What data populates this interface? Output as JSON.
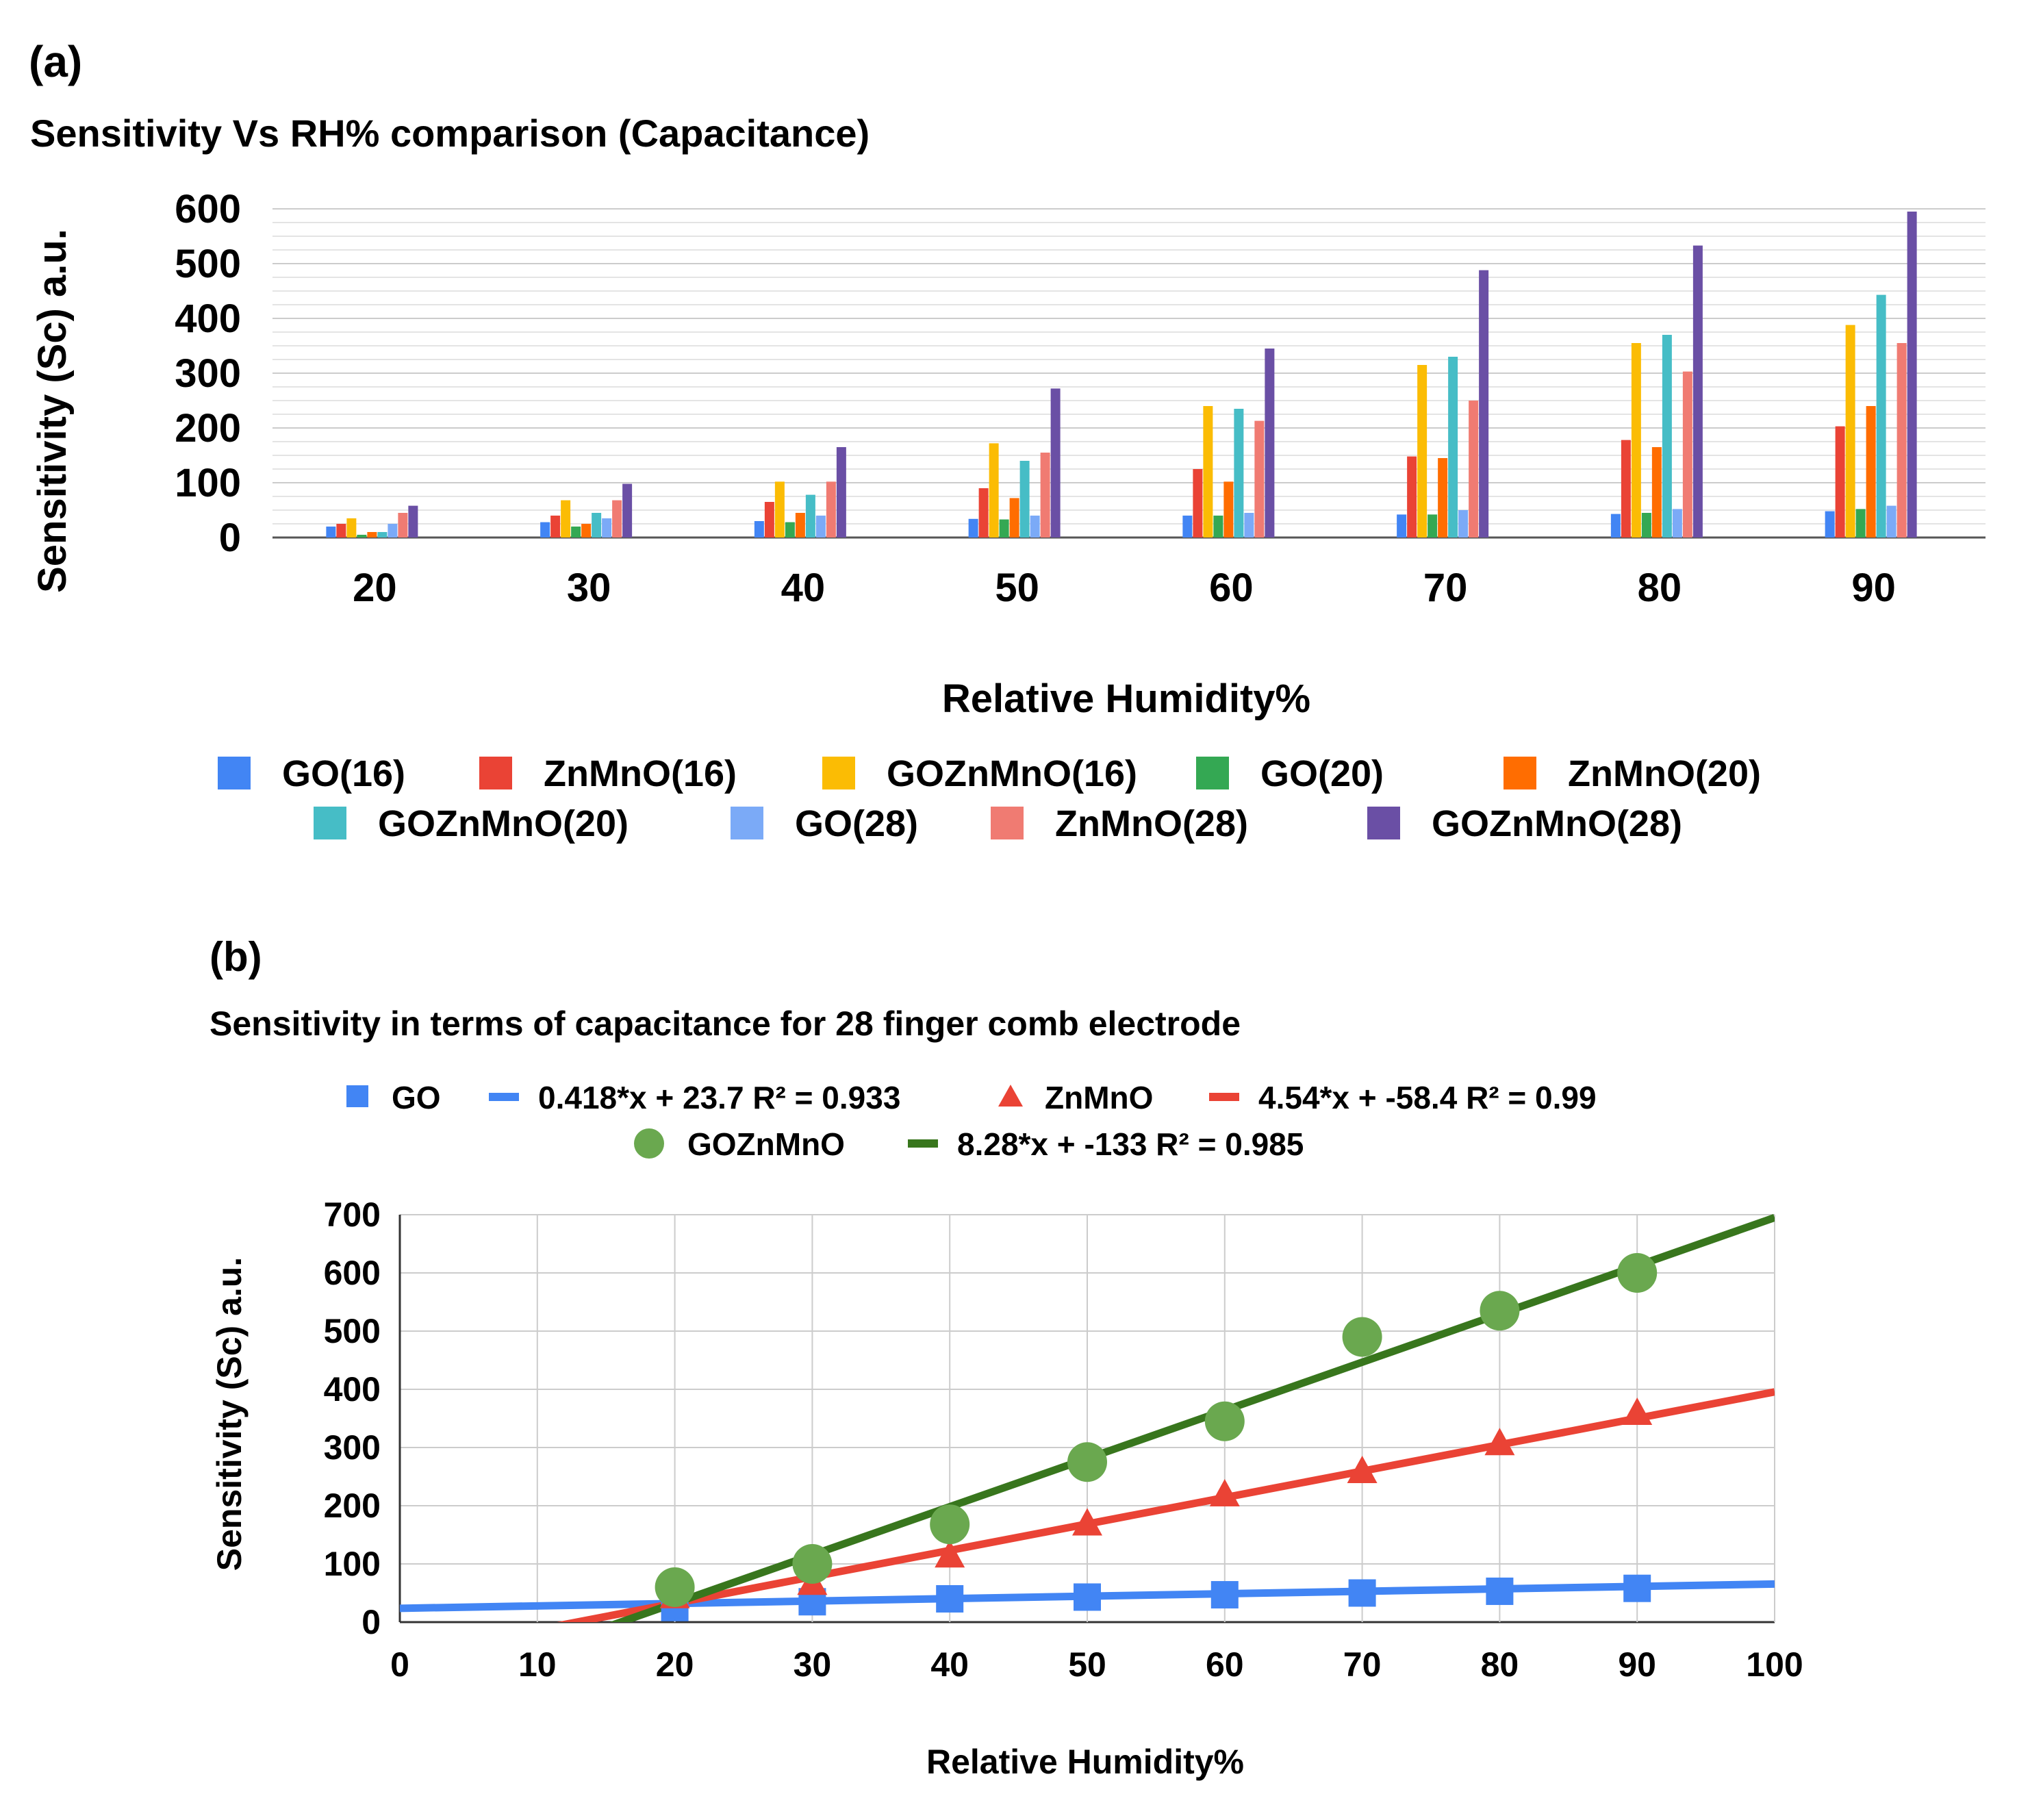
{
  "chart_data": [
    {
      "panel": "(a)",
      "type": "bar",
      "title": "Sensitivity Vs RH% comparison (Capacitance)",
      "xlabel": "Relative Humidity%",
      "ylabel": "Sensitivity (Sc) a.u.",
      "ylim": [
        0,
        600
      ],
      "yticks": [
        "0",
        "100",
        "200",
        "300",
        "400",
        "500",
        "600"
      ],
      "categories": [
        "20",
        "30",
        "40",
        "50",
        "60",
        "70",
        "80",
        "90"
      ],
      "legend_position": "bottom",
      "series": [
        {
          "name": "GO(16)",
          "color": "#4285f4",
          "values": [
            20,
            28,
            30,
            34,
            40,
            42,
            43,
            48
          ]
        },
        {
          "name": "ZnMnO(16)",
          "color": "#ea4335",
          "values": [
            25,
            40,
            65,
            90,
            125,
            148,
            178,
            203
          ]
        },
        {
          "name": "GOZnMnO(16)",
          "color": "#fbbc04",
          "values": [
            35,
            68,
            102,
            172,
            240,
            315,
            355,
            388
          ]
        },
        {
          "name": "GO(20)",
          "color": "#34a853",
          "values": [
            5,
            20,
            28,
            33,
            40,
            42,
            45,
            52
          ]
        },
        {
          "name": "ZnMnO(20)",
          "color": "#ff6d01",
          "values": [
            10,
            25,
            45,
            72,
            102,
            145,
            165,
            240
          ]
        },
        {
          "name": "GOZnMnO(20)",
          "color": "#46bdc6",
          "values": [
            10,
            45,
            78,
            140,
            235,
            330,
            370,
            443
          ]
        },
        {
          "name": "GO(28)",
          "color": "#7baaf7",
          "values": [
            25,
            35,
            40,
            40,
            45,
            50,
            52,
            58
          ]
        },
        {
          "name": "ZnMnO(28)",
          "color": "#f07b72",
          "values": [
            45,
            68,
            102,
            155,
            213,
            250,
            303,
            355
          ]
        },
        {
          "name": "GOZnMnO(28)",
          "color": "#6a4fa5",
          "values": [
            58,
            98,
            165,
            272,
            345,
            488,
            533,
            595
          ]
        }
      ]
    },
    {
      "panel": "(b)",
      "type": "scatter",
      "title": "Sensitivity in terms of capacitance for 28 finger comb electrode",
      "xlabel": "Relative Humidity%",
      "ylabel": "Sensitivity (Sc) a.u.",
      "xlim": [
        0,
        100
      ],
      "ylim": [
        0,
        700
      ],
      "xticks": [
        "0",
        "10",
        "20",
        "30",
        "40",
        "50",
        "60",
        "70",
        "80",
        "90",
        "100"
      ],
      "yticks": [
        "0",
        "100",
        "200",
        "300",
        "400",
        "500",
        "600",
        "700"
      ],
      "grid": true,
      "legend_position": "top",
      "x": [
        20,
        30,
        40,
        50,
        60,
        70,
        80,
        90
      ],
      "series": [
        {
          "name": "GO",
          "marker": "square",
          "color": "#4285f4",
          "values": [
            25,
            35,
            40,
            43,
            47,
            50,
            53,
            58
          ],
          "trendline": {
            "label": "0.418*x + 23.7 R² = 0.933",
            "slope": 0.418,
            "intercept": 23.7
          }
        },
        {
          "name": "ZnMnO",
          "marker": "triangle",
          "color": "#ea4335",
          "values": [
            45,
            68,
            115,
            170,
            220,
            260,
            308,
            360
          ],
          "trendline": {
            "label": "4.54*x + -58.4 R² = 0.99",
            "slope": 4.54,
            "intercept": -58.4
          }
        },
        {
          "name": "GOZnMnO",
          "marker": "circle",
          "color": "#6aa84f",
          "values": [
            60,
            100,
            168,
            275,
            345,
            490,
            535,
            600
          ],
          "trendline": {
            "label": "8.28*x + -133 R² = 0.985",
            "slope": 8.28,
            "intercept": -133,
            "color": "#38761d"
          }
        }
      ]
    }
  ]
}
